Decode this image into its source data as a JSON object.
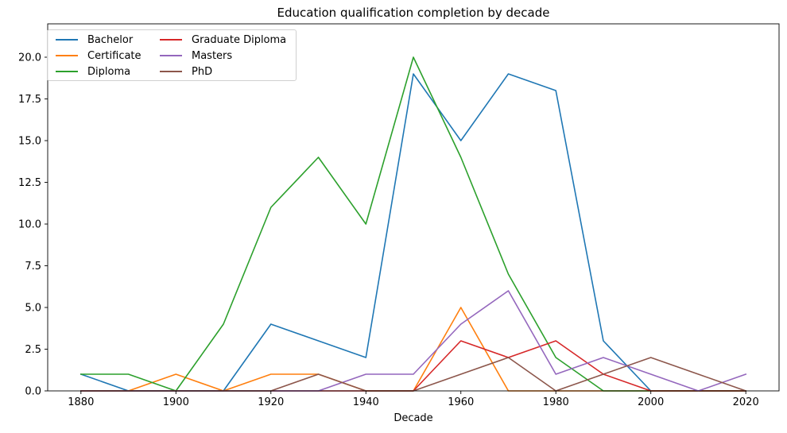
{
  "chart_data": {
    "type": "line",
    "title": "Education qualification completion by decade",
    "xlabel": "Decade",
    "ylabel": "",
    "x": [
      1880,
      1890,
      1900,
      1910,
      1920,
      1930,
      1940,
      1950,
      1960,
      1970,
      1980,
      1990,
      2000,
      2010,
      2020
    ],
    "xlim": [
      1873,
      2027
    ],
    "ylim": [
      0,
      22
    ],
    "x_ticks": [
      "1880",
      "1900",
      "1920",
      "1940",
      "1960",
      "1980",
      "2000",
      "2020"
    ],
    "y_ticks": [
      "0.0",
      "2.5",
      "5.0",
      "7.5",
      "10.0",
      "12.5",
      "15.0",
      "17.5",
      "20.0"
    ],
    "grid": false,
    "legend_position": "top-left",
    "series": [
      {
        "name": "Bachelor",
        "color": "#1f77b4",
        "values": [
          1,
          0,
          0,
          0,
          4,
          3,
          2,
          19,
          15,
          19,
          18,
          3,
          0,
          0,
          0
        ]
      },
      {
        "name": "Certificate",
        "color": "#ff7f0e",
        "values": [
          0,
          0,
          1,
          0,
          1,
          1,
          0,
          0,
          5,
          0,
          0,
          0,
          0,
          0,
          0
        ]
      },
      {
        "name": "Diploma",
        "color": "#2ca02c",
        "values": [
          1,
          1,
          0,
          4,
          11,
          14,
          10,
          20,
          14,
          7,
          2,
          0,
          0,
          0,
          0
        ]
      },
      {
        "name": "Graduate Diploma",
        "color": "#d62728",
        "values": [
          0,
          0,
          0,
          0,
          0,
          0,
          0,
          0,
          3,
          2,
          3,
          1,
          0,
          0,
          0
        ]
      },
      {
        "name": "Masters",
        "color": "#9467bd",
        "values": [
          0,
          0,
          0,
          0,
          0,
          0,
          1,
          1,
          4,
          6,
          1,
          2,
          1,
          0,
          1
        ]
      },
      {
        "name": "PhD",
        "color": "#8c564b",
        "values": [
          0,
          0,
          0,
          0,
          0,
          1,
          0,
          0,
          1,
          2,
          0,
          1,
          2,
          1,
          0
        ]
      }
    ]
  }
}
